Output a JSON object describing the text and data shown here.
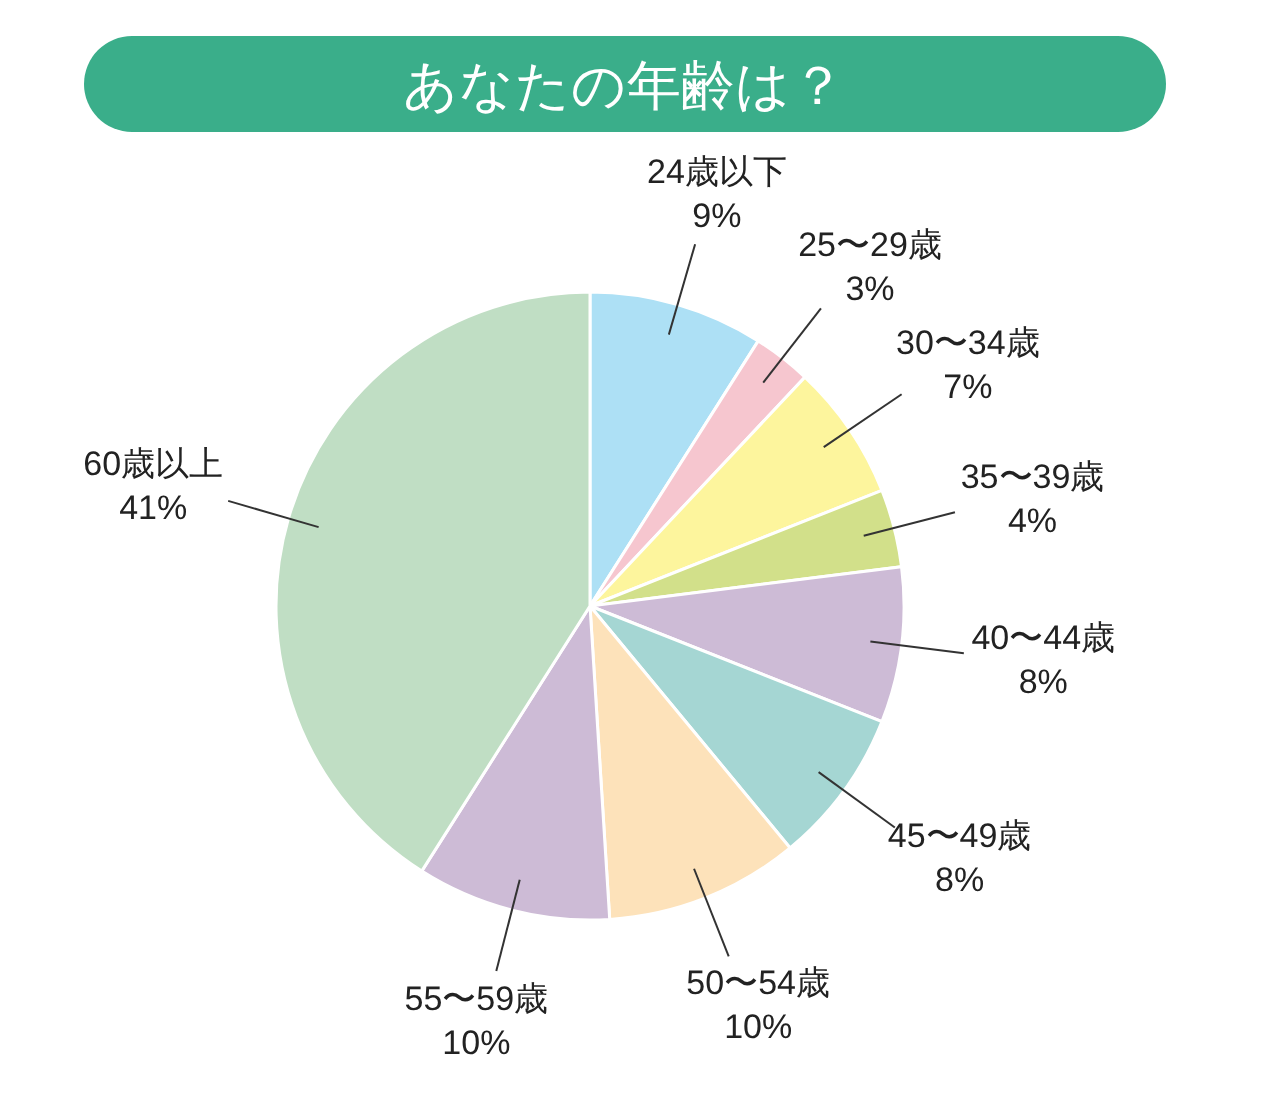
{
  "chart_data": {
    "type": "pie",
    "title": "あなたの年齢は？",
    "categories": [
      "24歳以下",
      "25〜29歳",
      "30〜34歳",
      "35〜39歳",
      "40〜44歳",
      "45〜49歳",
      "50〜54歳",
      "55〜59歳",
      "60歳以上"
    ],
    "values": [
      9,
      3,
      7,
      4,
      8,
      8,
      10,
      10,
      41
    ],
    "value_labels": [
      "9%",
      "3%",
      "7%",
      "4%",
      "8%",
      "8%",
      "10%",
      "10%",
      "41%"
    ],
    "colors": [
      "#ade0f5",
      "#f6c6cf",
      "#fdf59d",
      "#d2e08a",
      "#cdbbd6",
      "#a5d6d3",
      "#fde2ba",
      "#cdbbd6",
      "#c0dec4"
    ]
  }
}
